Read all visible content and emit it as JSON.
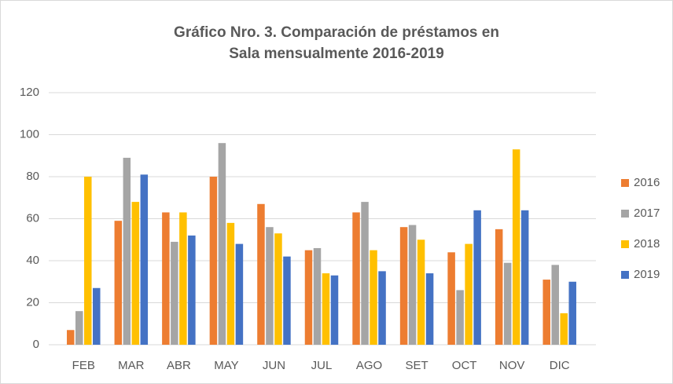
{
  "chart_data": {
    "type": "bar",
    "title": "Gráfico Nro. 3. Comparación de préstamos en Sala mensualmente 2016-2019",
    "categories": [
      "FEB",
      "MAR",
      "ABR",
      "MAY",
      "JUN",
      "JUL",
      "AGO",
      "SET",
      "OCT",
      "NOV",
      "DIC"
    ],
    "series": [
      {
        "name": "2016",
        "color": "#ed7d31",
        "values": [
          7,
          59,
          63,
          80,
          67,
          45,
          63,
          56,
          44,
          55,
          31
        ]
      },
      {
        "name": "2017",
        "color": "#a5a5a5",
        "values": [
          16,
          89,
          49,
          96,
          56,
          46,
          68,
          57,
          26,
          39,
          38
        ]
      },
      {
        "name": "2018",
        "color": "#ffc000",
        "values": [
          80,
          68,
          63,
          58,
          53,
          34,
          45,
          50,
          48,
          93,
          15
        ]
      },
      {
        "name": "2019",
        "color": "#4472c4",
        "values": [
          27,
          81,
          52,
          48,
          42,
          33,
          35,
          34,
          64,
          64,
          30
        ]
      }
    ],
    "ylim": [
      0,
      120
    ],
    "yticks": [
      0,
      20,
      40,
      60,
      80,
      100,
      120
    ],
    "grid": true,
    "legend": "right"
  }
}
